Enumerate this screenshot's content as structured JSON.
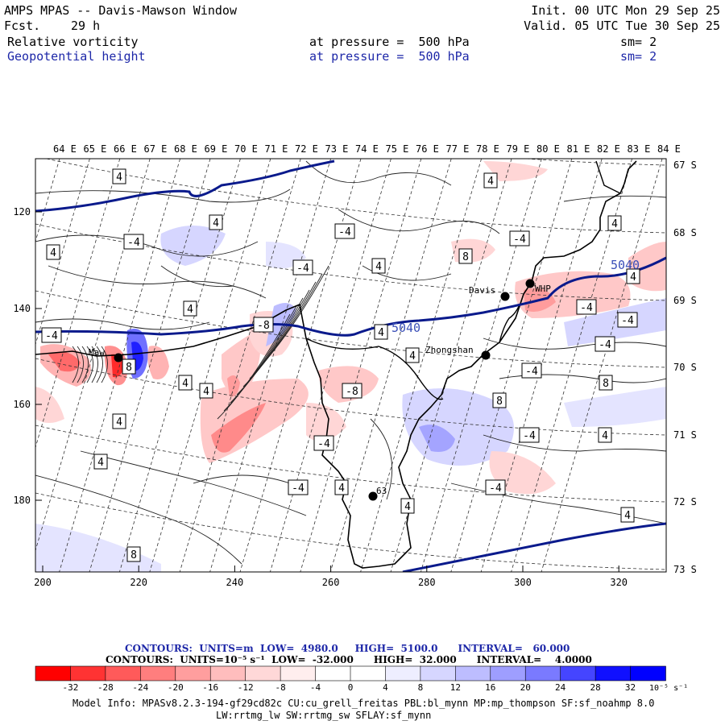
{
  "header": {
    "title": "AMPS MPAS -- Davis-Mawson Window",
    "forecast_label": "Fcst.",
    "forecast_hours": "29 h",
    "init": "Init. 00 UTC Mon 29 Sep 25",
    "valid": "Valid. 05 UTC Tue 30 Sep 25",
    "field1": {
      "name": "Relative vorticity",
      "level": "at pressure =  500 hPa",
      "smooth": "sm= 2"
    },
    "field2": {
      "name": "Geopotential height",
      "level": "at pressure =  500 hPa",
      "smooth": "sm= 2"
    }
  },
  "map": {
    "lon_labels": [
      "64 E",
      "65 E",
      "66 E",
      "67 E",
      "68 E",
      "69 E",
      "70 E",
      "71 E",
      "72 E",
      "73 E",
      "74 E",
      "75 E",
      "76 E",
      "77 E",
      "78 E",
      "79 E",
      "80 E",
      "81 E",
      "82 E",
      "83 E",
      "84 E"
    ],
    "lat_labels": [
      "67 S",
      "68 S",
      "69 S",
      "70 S",
      "71 S",
      "72 S",
      "73 S"
    ],
    "y_ticks": [
      "120",
      "140",
      "160",
      "180"
    ],
    "x_ticks": [
      "200",
      "220",
      "240",
      "260",
      "280",
      "300",
      "320"
    ],
    "stations": [
      {
        "name": "Davis",
        "label": "Davis"
      },
      {
        "name": "WHP",
        "label": "WHP"
      },
      {
        "name": "Zhongshan",
        "label": "Zhongshan"
      },
      {
        "name": "Mawson",
        "label": "Maw"
      },
      {
        "name": "Station63",
        "label": "63"
      }
    ],
    "height_contour_labels": [
      "5040",
      "5040"
    ],
    "vorticity_labels": [
      "4",
      "4",
      "-4",
      "4",
      "-4",
      "4",
      "-4",
      "-4",
      "8",
      "4",
      "4",
      "-4",
      "-4",
      "4",
      "-8",
      "-4",
      "8",
      "-4",
      "4",
      "4",
      "4",
      "8",
      "-4",
      "-8",
      "4",
      "-4",
      "8",
      "4",
      "4",
      "-4",
      "4",
      "4",
      "-4",
      "8",
      "4",
      "4",
      "4",
      "-4"
    ],
    "colors": {
      "height_contour": "#0a1a8c",
      "coast": "#000000"
    }
  },
  "footer": {
    "contours1": "CONTOURS:  UNITS=m  LOW=  4980.0     HIGH=  5100.0      INTERVAL=   60.000",
    "contours2": "CONTOURS:  UNITS=10⁻⁵ s⁻¹  LOW=  -32.000      HIGH=  32.000      INTERVAL=    4.0000",
    "model_info": "Model Info: MPASv8.2.3-194-gf29cd82c CU:cu_grell_freitas PBL:bl_mynn MP:mp_thompson SF:sf_noahmp 8.0",
    "model_info2": "LW:rrtmg_lw SW:rrtmg_sw SFLAY:sf_mynn",
    "colorbar": {
      "tick_labels": [
        "-32",
        "-28",
        "-24",
        "-20",
        "-16",
        "-12",
        "-8",
        "-4",
        "0",
        "4",
        "8",
        "12",
        "16",
        "20",
        "24",
        "28",
        "32"
      ],
      "unit": "10⁻⁵ s⁻¹",
      "colors": [
        "#ff0000",
        "#ff3333",
        "#ff5a5a",
        "#ff7e7e",
        "#ff9e9e",
        "#ffbdbd",
        "#ffd8d8",
        "#ffeeee",
        "#ffffff",
        "#ffffff",
        "#eeeeff",
        "#d6d6ff",
        "#bdbdff",
        "#9e9eff",
        "#7a7aff",
        "#4545ff",
        "#1010ff",
        "#0000ff"
      ]
    }
  }
}
